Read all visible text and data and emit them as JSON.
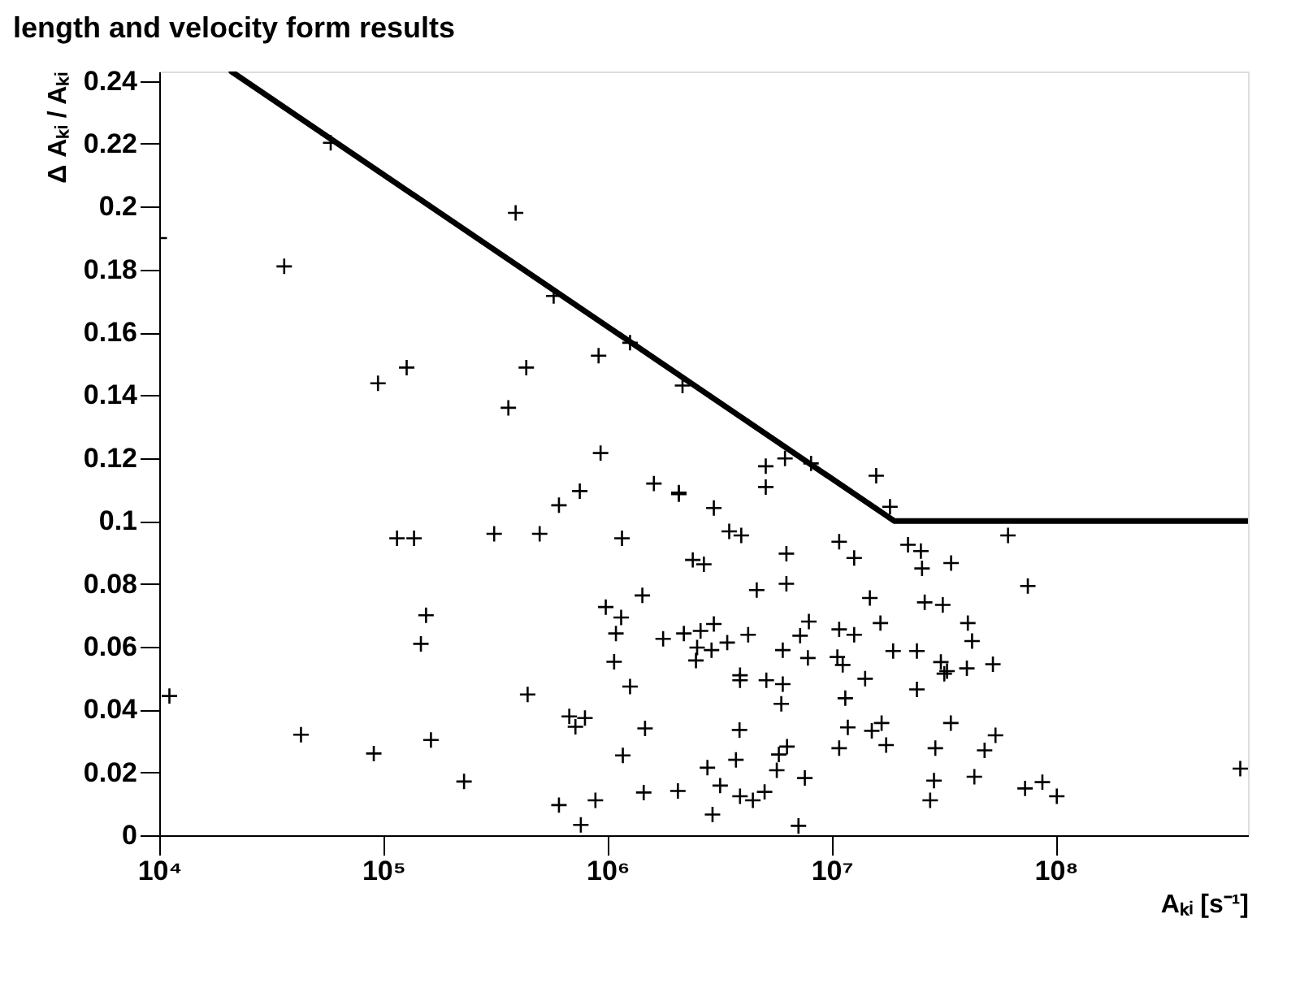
{
  "chart_data": {
    "type": "scatter",
    "title": "length and velocity form results",
    "xlabel": "Aₖᵢ [s⁻¹]",
    "ylabel": "Δ Aₖᵢ / Aₖᵢ",
    "log": "x",
    "grid": false,
    "marker": "cross",
    "xlim": [
      10000,
      720000000
    ],
    "ylim": [
      0,
      0.243
    ],
    "xticks": [
      {
        "value": 10000,
        "label": "10⁴"
      },
      {
        "value": 100000,
        "label": "10⁵"
      },
      {
        "value": 1000000,
        "label": "10⁶"
      },
      {
        "value": 10000000,
        "label": "10⁷"
      },
      {
        "value": 100000000,
        "label": "10⁸"
      }
    ],
    "yticks": [
      0,
      0.02,
      0.04,
      0.06,
      0.08,
      0.1,
      0.12,
      0.14,
      0.16,
      0.18,
      0.2,
      0.22,
      0.24
    ],
    "series": [
      {
        "color": "#000000",
        "x": [
          58200,
          389000,
          10000,
          36100,
          127000,
          94600,
          361000,
          575000,
          434000,
          912000,
          1260000,
          2160000,
          931000,
          5080000,
          6190000,
          8090000,
          5080000,
          1610000,
          752000,
          2080000,
          2080000,
          607000,
          15800000,
          18200000,
          2980000,
          498000,
          1160000,
          3490000,
          3950000,
          6280000,
          10800000,
          12600000,
          2400000,
          2690000,
          6280000,
          4630000,
          1430000,
          14800000,
          982000,
          1150000,
          7910000,
          2980000,
          2600000,
          2190000,
          1090000,
          4240000,
          10800000,
          12600000,
          7230000,
          1770000,
          3420000,
          2510000,
          2910000,
          6050000,
          2480000,
          1070000,
          7830000,
          10600000,
          11200000,
          3900000,
          3900000,
          5110000,
          6050000,
          14100000,
          440000,
          1260000,
          5960000,
          11500000,
          675000,
          793000,
          719000,
          1470000,
          3880000,
          11800000,
          15100000,
          6320000,
          5810000,
          3740000,
          10800000,
          1170000,
          2790000,
          5690000,
          7590000,
          3180000,
          3900000,
          4450000,
          5020000,
          1450000,
          2060000,
          883000,
          607000,
          2940000,
          760000,
          7110000,
          115000,
          137000,
          312000,
          155000,
          147000,
          11100,
          42900,
          90600,
          163000,
          229000,
          61200000,
          21900000,
          25000000,
          25300000,
          34100000,
          75000000,
          26000000,
          31300000,
          16500000,
          40500000,
          42300000,
          18800000,
          24000000,
          30700000,
          31800000,
          32700000,
          40100000,
          52400000,
          24000000,
          16700000,
          34000000,
          17500000,
          53800000,
          48100000,
          29000000,
          28600000,
          43300000,
          27500000,
          72900000,
          87100000,
          101000000,
          665000000
        ],
        "values": [
          0.2203,
          0.198,
          0.19,
          0.181,
          0.1488,
          0.1438,
          0.136,
          0.1716,
          0.1488,
          0.1526,
          0.1567,
          0.1431,
          0.1216,
          0.1174,
          0.1199,
          0.1183,
          0.1108,
          0.1119,
          0.1095,
          0.109,
          0.1085,
          0.105,
          0.1144,
          0.1045,
          0.1041,
          0.0959,
          0.0945,
          0.0967,
          0.0954,
          0.0896,
          0.0934,
          0.0882,
          0.0876,
          0.0862,
          0.08,
          0.078,
          0.0763,
          0.0755,
          0.0726,
          0.0693,
          0.068,
          0.0672,
          0.065,
          0.0642,
          0.0642,
          0.0638,
          0.0655,
          0.0638,
          0.0635,
          0.0625,
          0.0613,
          0.0597,
          0.0589,
          0.0589,
          0.0556,
          0.0552,
          0.0564,
          0.0567,
          0.0542,
          0.0509,
          0.0493,
          0.0493,
          0.0481,
          0.0498,
          0.0448,
          0.0473,
          0.0418,
          0.0436,
          0.0378,
          0.0373,
          0.0345,
          0.034,
          0.0335,
          0.0343,
          0.0332,
          0.0282,
          0.0257,
          0.024,
          0.0277,
          0.0254,
          0.0215,
          0.0207,
          0.0182,
          0.0158,
          0.0124,
          0.0111,
          0.0138,
          0.0136,
          0.0141,
          0.0111,
          0.0096,
          0.0066,
          0.0033,
          0.003,
          0.0945,
          0.0945,
          0.0959,
          0.07,
          0.0609,
          0.0443,
          0.032,
          0.026,
          0.0303,
          0.0171,
          0.0954,
          0.0924,
          0.0904,
          0.0849,
          0.0866,
          0.0793,
          0.0741,
          0.0733,
          0.0675,
          0.0675,
          0.0618,
          0.0586,
          0.0586,
          0.0551,
          0.0514,
          0.0522,
          0.0531,
          0.0544,
          0.0464,
          0.0357,
          0.0357,
          0.0287,
          0.0318,
          0.027,
          0.0277,
          0.0174,
          0.0186,
          0.0111,
          0.0149,
          0.0169,
          0.0124,
          0.0212
        ]
      },
      {
        "type": "line",
        "color": "#000000",
        "marker": "none",
        "line_style": "solid",
        "x": [
          21000,
          19000000,
          720000000
        ],
        "values": [
          0.243,
          0.1,
          0.1
        ]
      }
    ]
  }
}
